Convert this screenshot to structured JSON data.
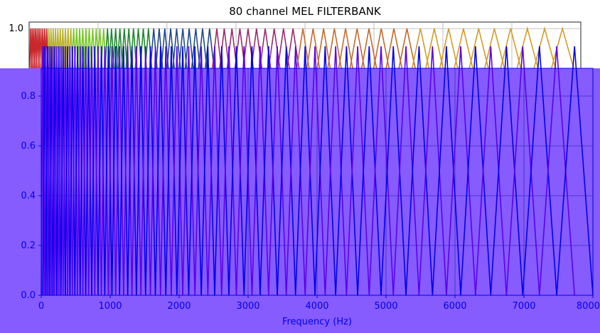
{
  "chart_data": {
    "type": "line",
    "title": "80 channel MEL FILTERBANK",
    "xlabel": "Frequency (Hz)",
    "ylabel": "",
    "num_filters": 80,
    "xlim": [
      0,
      8000
    ],
    "ylim": [
      0.0,
      1.1
    ],
    "grid": true,
    "yticks_top": [
      "1.0"
    ],
    "xticks": [
      "0",
      "1000",
      "2000",
      "3000",
      "4000",
      "5000",
      "6000",
      "7000",
      "8000"
    ],
    "yticks": [
      "0.0",
      "0.2",
      "0.4",
      "0.6",
      "0.8"
    ],
    "overlay_color": "#865cff",
    "overlay_line_colors": [
      "#0000ee",
      "#5b00ee"
    ],
    "top_line_colors": [
      "#c8282b",
      "#b8b22a",
      "#77c825",
      "#20882f",
      "#1f4a8c",
      "#9b2b6e",
      "#c46a2c",
      "#d39c25"
    ],
    "axis_text_color": "#0000ee"
  }
}
